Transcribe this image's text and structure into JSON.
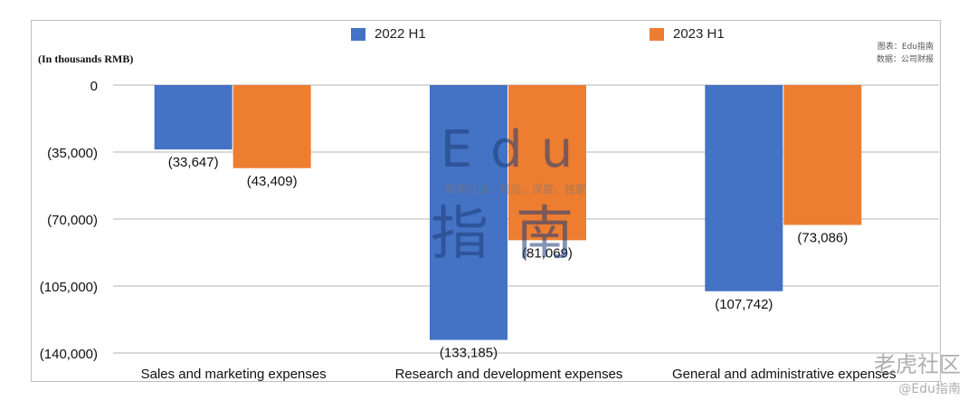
{
  "chart_data": {
    "type": "bar",
    "ylabel": "(In thousands RMB)",
    "ylim": [
      -140000,
      0
    ],
    "yticks": [
      0,
      -35000,
      -70000,
      -105000,
      -140000
    ],
    "ytick_labels": [
      "0",
      "(35,000)",
      "(70,000)",
      "(105,000)",
      "(140,000)"
    ],
    "grid": true,
    "legend_position": "top-center",
    "categories": [
      "Sales and marketing expenses",
      "Research and development expenses",
      "General and administrative expenses"
    ],
    "series": [
      {
        "name": "2022 H1",
        "color": "#4472c4",
        "values": [
          -33647,
          -133185,
          -107742
        ],
        "labels": [
          "(33,647)",
          "(133,185)",
          "(107,742)"
        ]
      },
      {
        "name": "2023 H1",
        "color": "#ed7d31",
        "values": [
          -43409,
          -81069,
          -73086
        ],
        "labels": [
          "(43,409)",
          "(81,069)",
          "(73,086)"
        ]
      }
    ]
  },
  "source": {
    "line1": "图表：Edu指南",
    "line2": "数据：公司财报"
  },
  "watermark": {
    "edu": "Edu",
    "slogan": "教育行业，前沿、深度、独家",
    "cn": "指南"
  },
  "corner_watermark": {
    "top": "老虎社区",
    "bottom": "@Edu指南"
  }
}
